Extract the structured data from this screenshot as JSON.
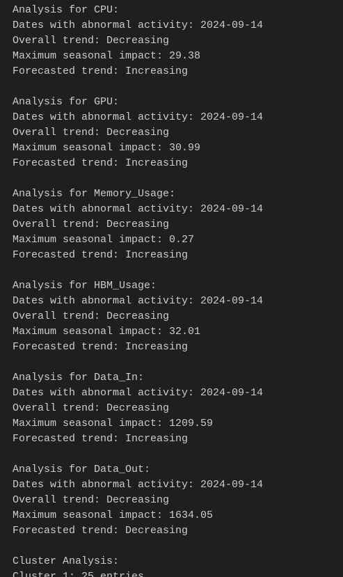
{
  "blocks": [
    {
      "lines": [
        "Analysis for CPU:",
        "Dates with abnormal activity: 2024-09-14",
        "Overall trend: Decreasing",
        "Maximum seasonal impact: 29.38",
        "Forecasted trend: Increasing"
      ]
    },
    {
      "lines": [
        "Analysis for GPU:",
        "Dates with abnormal activity: 2024-09-14",
        "Overall trend: Decreasing",
        "Maximum seasonal impact: 30.99",
        "Forecasted trend: Increasing"
      ]
    },
    {
      "lines": [
        "Analysis for Memory_Usage:",
        "Dates with abnormal activity: 2024-09-14",
        "Overall trend: Decreasing",
        "Maximum seasonal impact: 0.27",
        "Forecasted trend: Increasing"
      ]
    },
    {
      "lines": [
        "Analysis for HBM_Usage:",
        "Dates with abnormal activity: 2024-09-14",
        "Overall trend: Decreasing",
        "Maximum seasonal impact: 32.01",
        "Forecasted trend: Increasing"
      ]
    },
    {
      "lines": [
        "Analysis for Data_In:",
        "Dates with abnormal activity: 2024-09-14",
        "Overall trend: Decreasing",
        "Maximum seasonal impact: 1209.59",
        "Forecasted trend: Increasing"
      ]
    },
    {
      "lines": [
        "Analysis for Data_Out:",
        "Dates with abnormal activity: 2024-09-14",
        "Overall trend: Decreasing",
        "Maximum seasonal impact: 1634.05",
        "Forecasted trend: Decreasing"
      ]
    },
    {
      "lines": [
        "Cluster Analysis:",
        "Cluster 1: 25 entries"
      ]
    }
  ]
}
